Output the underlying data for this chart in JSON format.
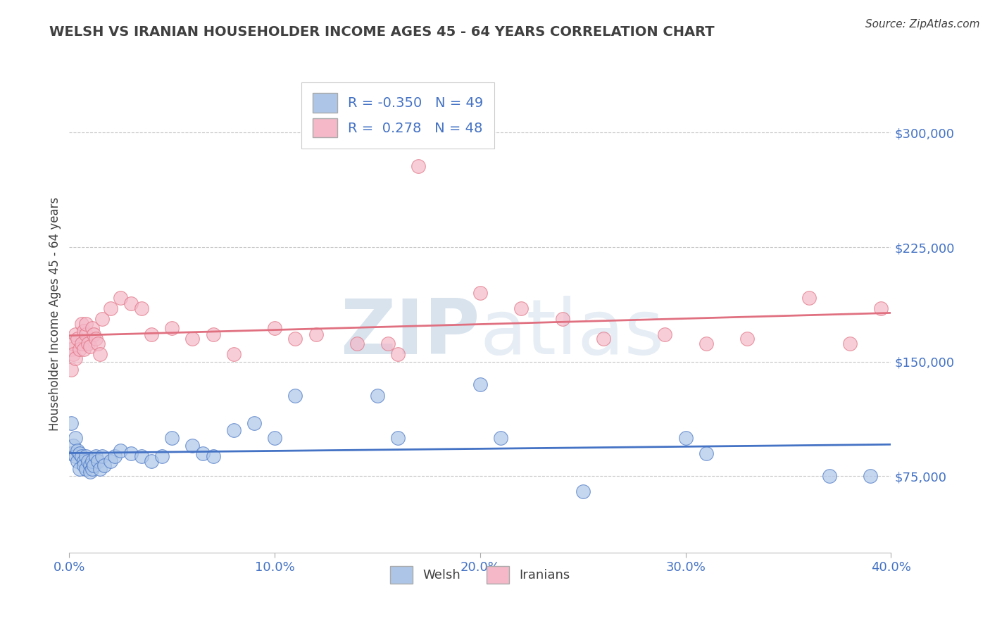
{
  "title": "WELSH VS IRANIAN HOUSEHOLDER INCOME AGES 45 - 64 YEARS CORRELATION CHART",
  "source": "Source: ZipAtlas.com",
  "ylabel": "Householder Income Ages 45 - 64 years",
  "xlim": [
    0.0,
    0.4
  ],
  "ylim": [
    25000,
    337500
  ],
  "yticks": [
    75000,
    150000,
    225000,
    300000
  ],
  "ytick_labels": [
    "$75,000",
    "$150,000",
    "$225,000",
    "$300,000"
  ],
  "xticks": [
    0.0,
    0.1,
    0.2,
    0.3,
    0.4
  ],
  "xtick_labels": [
    "0.0%",
    "10.0%",
    "20.0%",
    "30.0%",
    "40.0%"
  ],
  "welsh_color": "#adc6e8",
  "welsh_line_color": "#4472c4",
  "iranian_color": "#f4b8c8",
  "iranian_line_color": "#e07080",
  "welsh_R": -0.35,
  "welsh_N": 49,
  "iranian_R": 0.278,
  "iranian_N": 48,
  "welsh_x": [
    0.001,
    0.001,
    0.002,
    0.003,
    0.003,
    0.004,
    0.004,
    0.005,
    0.005,
    0.006,
    0.007,
    0.007,
    0.008,
    0.008,
    0.009,
    0.01,
    0.01,
    0.011,
    0.011,
    0.012,
    0.013,
    0.014,
    0.015,
    0.016,
    0.017,
    0.02,
    0.022,
    0.025,
    0.03,
    0.035,
    0.04,
    0.045,
    0.05,
    0.06,
    0.065,
    0.07,
    0.08,
    0.09,
    0.1,
    0.11,
    0.15,
    0.16,
    0.2,
    0.21,
    0.25,
    0.3,
    0.31,
    0.37,
    0.39
  ],
  "welsh_y": [
    110000,
    90000,
    95000,
    100000,
    88000,
    92000,
    85000,
    90000,
    80000,
    88000,
    85000,
    82000,
    80000,
    88000,
    85000,
    82000,
    78000,
    80000,
    85000,
    82000,
    88000,
    85000,
    80000,
    88000,
    82000,
    85000,
    88000,
    92000,
    90000,
    88000,
    85000,
    88000,
    100000,
    95000,
    90000,
    88000,
    105000,
    110000,
    100000,
    128000,
    128000,
    100000,
    135000,
    100000,
    65000,
    100000,
    90000,
    75000,
    75000
  ],
  "iranian_x": [
    0.001,
    0.001,
    0.002,
    0.002,
    0.003,
    0.003,
    0.004,
    0.005,
    0.006,
    0.006,
    0.007,
    0.007,
    0.008,
    0.008,
    0.009,
    0.01,
    0.011,
    0.012,
    0.013,
    0.014,
    0.015,
    0.016,
    0.02,
    0.025,
    0.03,
    0.035,
    0.04,
    0.05,
    0.06,
    0.07,
    0.08,
    0.1,
    0.11,
    0.12,
    0.14,
    0.155,
    0.16,
    0.17,
    0.2,
    0.22,
    0.24,
    0.26,
    0.29,
    0.31,
    0.33,
    0.36,
    0.38,
    0.395
  ],
  "iranian_y": [
    158000,
    145000,
    162000,
    155000,
    168000,
    152000,
    165000,
    158000,
    175000,
    162000,
    170000,
    158000,
    168000,
    175000,
    162000,
    160000,
    172000,
    168000,
    165000,
    162000,
    155000,
    178000,
    185000,
    192000,
    188000,
    185000,
    168000,
    172000,
    165000,
    168000,
    155000,
    172000,
    165000,
    168000,
    162000,
    162000,
    155000,
    278000,
    195000,
    185000,
    178000,
    165000,
    168000,
    162000,
    165000,
    192000,
    162000,
    185000
  ],
  "watermark_zip": "ZIP",
  "watermark_atlas": "atlas",
  "background_color": "#ffffff",
  "grid_color": "#c8c8c8",
  "tick_label_color": "#4472c4",
  "title_color": "#404040",
  "ylabel_color": "#404040",
  "source_color": "#404040"
}
